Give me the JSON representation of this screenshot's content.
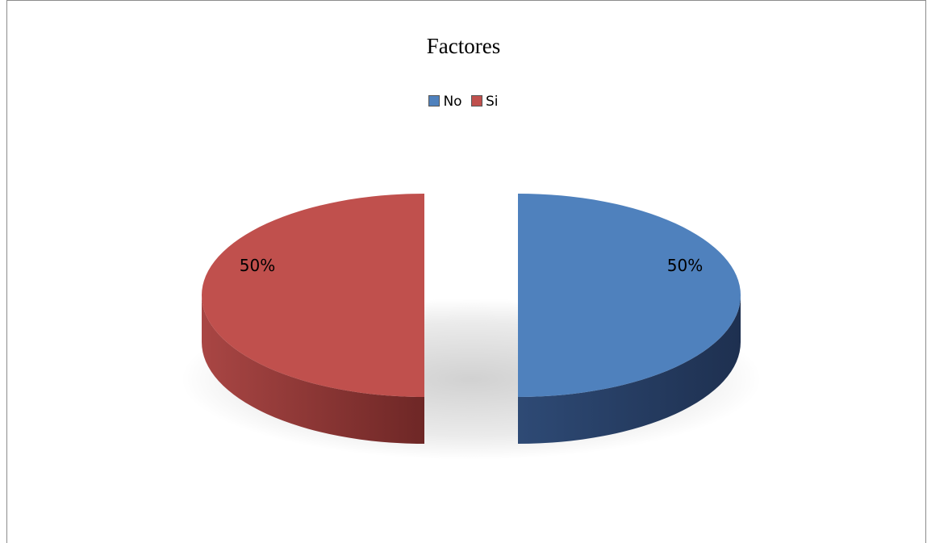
{
  "chart_data": {
    "type": "pie",
    "title": "Factores",
    "legend_position": "top",
    "categories": [
      "No",
      "Si"
    ],
    "values": [
      50,
      50
    ],
    "labels": [
      "50%",
      "50%"
    ],
    "colors": [
      "#4F81BD",
      "#C0504D"
    ],
    "side_colors": [
      "#23375a",
      "#7d2c2b"
    ]
  }
}
